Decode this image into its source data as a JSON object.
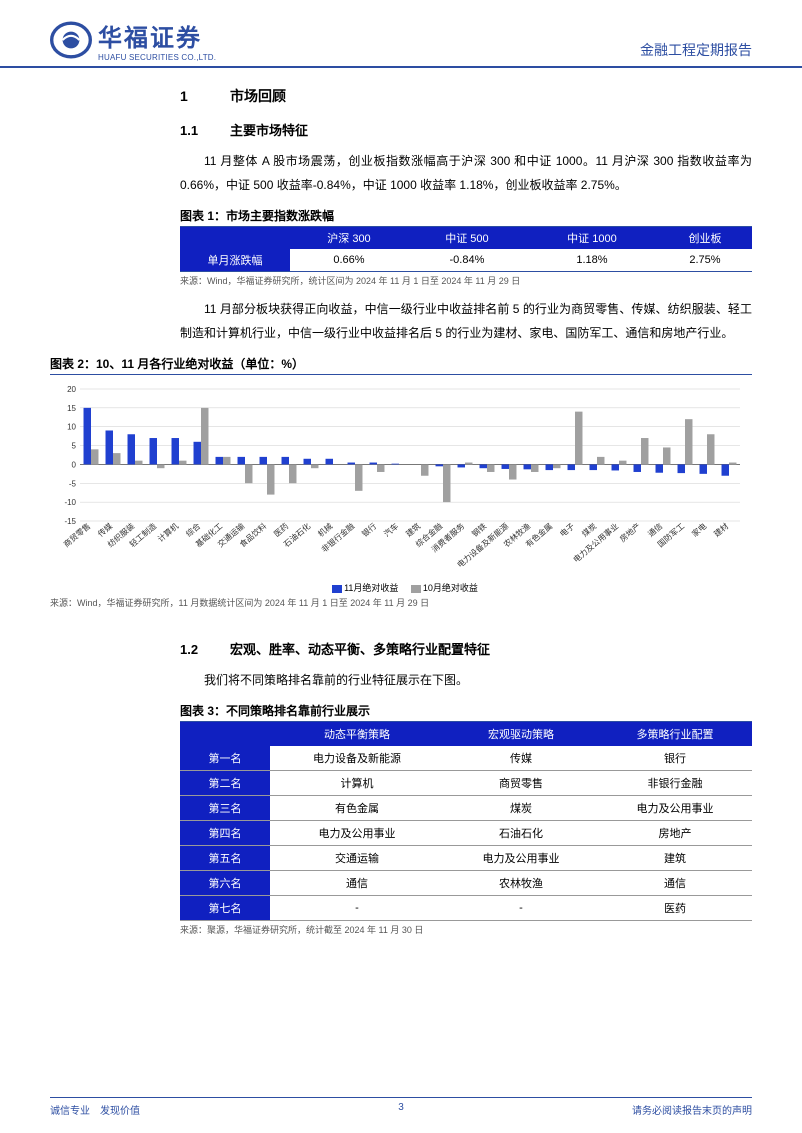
{
  "header": {
    "logo_cn": "华福证券",
    "logo_en": "HUAFU SECURITIES CO.,LTD.",
    "right": "金融工程定期报告"
  },
  "sec1": {
    "num": "1",
    "title": "市场回顾"
  },
  "sec1_1": {
    "num": "1.1",
    "title": "主要市场特征",
    "p1": "11 月整体 A 股市场震荡，创业板指数涨幅高于沪深 300 和中证 1000。11 月沪深 300 指数收益率为 0.66%，中证 500 收益率-0.84%，中证 1000 收益率 1.18%，创业板收益率 2.75%。"
  },
  "fig1": {
    "title": "图表 1：市场主要指数涨跌幅",
    "headers": [
      "",
      "沪深 300",
      "中证 500",
      "中证 1000",
      "创业板"
    ],
    "row_label": "单月涨跌幅",
    "values": [
      "0.66%",
      "-0.84%",
      "1.18%",
      "2.75%"
    ],
    "source": "来源：Wind，华福证券研究所，统计区间为 2024 年 11 月 1 日至 2024 年 11 月 29 日"
  },
  "p_after_fig1": "11 月部分板块获得正向收益，中信一级行业中收益排名前 5 的行业为商贸零售、传媒、纺织服装、轻工制造和计算机行业，中信一级行业中收益排名后 5 的行业为建材、家电、国防军工、通信和房地产行业。",
  "fig2": {
    "title": "图表 2：10、11 月各行业绝对收益（单位：%）",
    "type": "bar-grouped",
    "ylim": [
      -15,
      20
    ],
    "ytick_step": 5,
    "grid_color": "#cccccc",
    "bar_width": 0.34,
    "series": [
      {
        "name": "11月绝对收益",
        "color": "#2040d0"
      },
      {
        "name": "10月绝对收益",
        "color": "#a0a0a0"
      }
    ],
    "categories": [
      "商贸零售",
      "传媒",
      "纺织服装",
      "轻工制造",
      "计算机",
      "综合",
      "基础化工",
      "交通运输",
      "食品饮料",
      "医药",
      "石油石化",
      "机械",
      "非银行金融",
      "银行",
      "汽车",
      "建筑",
      "综合金融",
      "消费者服务",
      "钢铁",
      "电力设备及新能源",
      "农林牧渔",
      "有色金属",
      "电子",
      "煤炭",
      "电力及公用事业",
      "房地产",
      "通信",
      "国防军工",
      "家电",
      "建材"
    ],
    "values_nov": [
      15,
      9,
      8,
      7,
      7,
      6,
      2,
      2,
      2,
      2,
      1.5,
      1.5,
      0.5,
      0.5,
      0.2,
      0,
      -0.5,
      -0.8,
      -1,
      -1.2,
      -1.3,
      -1.5,
      -1.5,
      -1.5,
      -1.6,
      -2,
      -2.2,
      -2.3,
      -2.5,
      -3
    ],
    "values_oct": [
      4,
      3,
      1,
      -1,
      1,
      15,
      2,
      -5,
      -8,
      -5,
      -1,
      0,
      -7,
      -2,
      0,
      -3,
      -10,
      0.5,
      -2,
      -4,
      -2,
      -1,
      14,
      2,
      1,
      7,
      4.5,
      12,
      8,
      0.5
    ],
    "source": "来源：Wind，华福证券研究所，11 月数据统计区间为 2024 年 11 月 1 日至 2024 年 11 月 29 日",
    "legend_nov": "11月绝对收益",
    "legend_oct": "10月绝对收益"
  },
  "sec1_2": {
    "num": "1.2",
    "title": "宏观、胜率、动态平衡、多策略行业配置特征",
    "p1": "我们将不同策略排名靠前的行业特征展示在下图。"
  },
  "fig3": {
    "title": "图表 3：不同策略排名靠前行业展示",
    "headers": [
      "",
      "动态平衡策略",
      "宏观驱动策略",
      "多策略行业配置"
    ],
    "rows": [
      {
        "label": "第一名",
        "cells": [
          "电力设备及新能源",
          "传媒",
          "银行"
        ]
      },
      {
        "label": "第二名",
        "cells": [
          "计算机",
          "商贸零售",
          "非银行金融"
        ]
      },
      {
        "label": "第三名",
        "cells": [
          "有色金属",
          "煤炭",
          "电力及公用事业"
        ]
      },
      {
        "label": "第四名",
        "cells": [
          "电力及公用事业",
          "石油石化",
          "房地产"
        ]
      },
      {
        "label": "第五名",
        "cells": [
          "交通运输",
          "电力及公用事业",
          "建筑"
        ]
      },
      {
        "label": "第六名",
        "cells": [
          "通信",
          "农林牧渔",
          "通信"
        ]
      },
      {
        "label": "第七名",
        "cells": [
          "-",
          "-",
          "医药"
        ]
      }
    ],
    "source": "来源：聚源，华福证券研究所，统计截至 2024 年 11 月 30 日"
  },
  "footer": {
    "left": "诚信专业　发现价值",
    "page": "3",
    "right": "请务必阅读报告末页的声明"
  }
}
